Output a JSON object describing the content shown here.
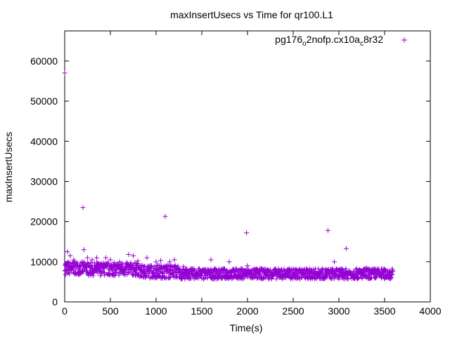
{
  "chart_data": {
    "type": "scatter",
    "title": "maxInsertUsecs vs Time for qr100.L1",
    "xlabel": "Time(s)",
    "ylabel": "maxInsertUsecs",
    "xlim": [
      0,
      4000
    ],
    "ylim": [
      0,
      67500
    ],
    "x_ticks": [
      0,
      500,
      1000,
      1500,
      2000,
      2500,
      3000,
      3500,
      4000
    ],
    "y_ticks": [
      0,
      10000,
      20000,
      30000,
      40000,
      50000,
      60000
    ],
    "grid": false,
    "legend_position": "top-right",
    "marker": "+",
    "series": [
      {
        "name": "pg176_o2nofp.cx10a_c8r32",
        "legend_parts": [
          {
            "text": "pg176",
            "sub": false
          },
          {
            "text": "o",
            "sub": true
          },
          {
            "text": "2nofp.cx10a",
            "sub": false
          },
          {
            "text": "c",
            "sub": true
          },
          {
            "text": "8r32",
            "sub": false
          }
        ],
        "color": "#9400d3",
        "outliers": [
          [
            0,
            57000
          ],
          [
            10,
            9500
          ],
          [
            30,
            12500
          ],
          [
            60,
            11500
          ],
          [
            100,
            10500
          ],
          [
            200,
            23500
          ],
          [
            210,
            13000
          ],
          [
            250,
            11000
          ],
          [
            300,
            10500
          ],
          [
            350,
            11000
          ],
          [
            450,
            11000
          ],
          [
            500,
            10500
          ],
          [
            600,
            10000
          ],
          [
            700,
            11800
          ],
          [
            750,
            11500
          ],
          [
            800,
            10200
          ],
          [
            900,
            11000
          ],
          [
            1000,
            10000
          ],
          [
            1050,
            10300
          ],
          [
            1100,
            21300
          ],
          [
            1150,
            10000
          ],
          [
            1200,
            10500
          ],
          [
            1300,
            8800
          ],
          [
            1600,
            10500
          ],
          [
            1800,
            10000
          ],
          [
            1990,
            17200
          ],
          [
            2000,
            9000
          ],
          [
            2880,
            17800
          ],
          [
            2950,
            10000
          ],
          [
            3080,
            13300
          ],
          [
            3300,
            8500
          ],
          [
            3400,
            8200
          ]
        ],
        "bands": [
          {
            "x_from": 0,
            "x_to": 250,
            "y_min": 6800,
            "y_max": 10000
          },
          {
            "x_from": 250,
            "x_to": 800,
            "y_min": 6500,
            "y_max": 9800
          },
          {
            "x_from": 800,
            "x_to": 1250,
            "y_min": 5900,
            "y_max": 9200
          },
          {
            "x_from": 1250,
            "x_to": 3580,
            "y_min": 5700,
            "y_max": 8300
          }
        ]
      }
    ]
  }
}
